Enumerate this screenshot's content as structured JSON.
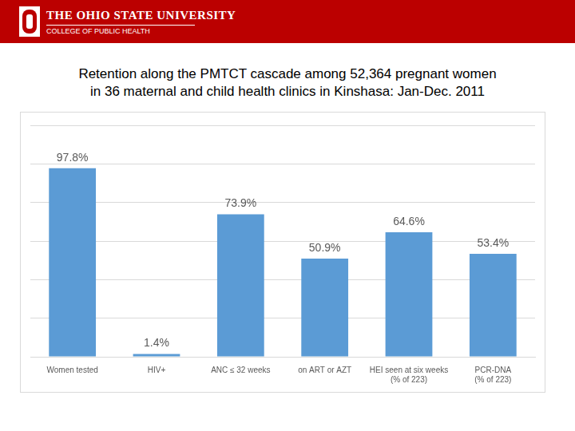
{
  "header": {
    "university": "THE OHIO STATE UNIVERSITY",
    "college": "COLLEGE OF PUBLIC HEALTH"
  },
  "chart_data": {
    "type": "bar",
    "title": "Retention along the PMTCT cascade among 52,364 pregnant women in 36 maternal and child health clinics in Kinshasa: Jan-Dec. 2011",
    "categories": [
      "Women tested",
      "HIV+",
      "ANC ≤ 32 weeks",
      "on ART or AZT",
      "HEI seen at six weeks (% of 223)",
      "PCR-DNA (% of 223)"
    ],
    "values": [
      97.8,
      1.4,
      73.9,
      50.9,
      64.6,
      53.4
    ],
    "value_labels": [
      "97.8%",
      "1.4%",
      "73.9%",
      "50.9%",
      "64.6%",
      "53.4%"
    ],
    "color": "#5b9bd5",
    "ylim": [
      0,
      120
    ],
    "yticks": [
      0,
      20,
      40,
      60,
      80,
      100,
      120
    ],
    "grid": true,
    "data_labels": true,
    "tick_labels": "x"
  }
}
